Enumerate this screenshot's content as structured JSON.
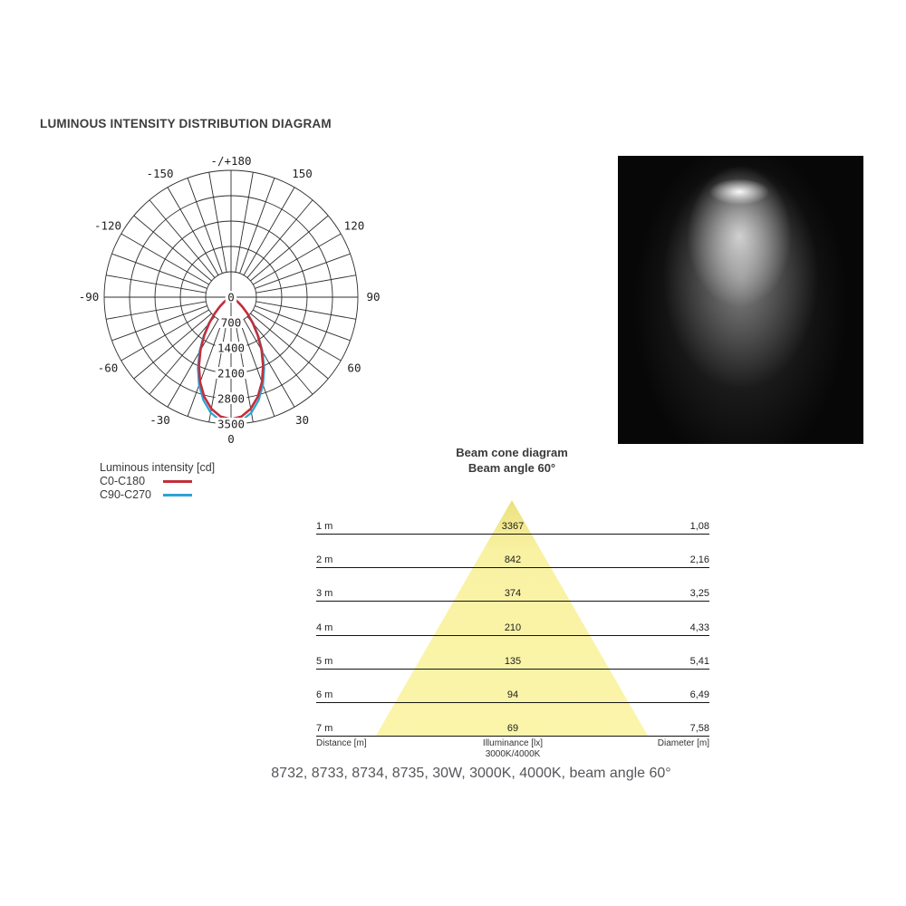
{
  "page": {
    "title": "LUMINOUS INTENSITY DISTRIBUTION DIAGRAM",
    "caption": "8732, 8733, 8734, 8735, 30W, 3000K, 4000K, beam angle 60°"
  },
  "colors": {
    "c0_c180": "#c22f3a",
    "c90_c270": "#2aa5d6",
    "grid": "#2e2e2e",
    "beam_fill": "#fbf5ab",
    "text_dark": "#3a3a3a"
  },
  "legend": {
    "title": "Luminous intensity [cd]",
    "items": [
      {
        "label": "C0-C180",
        "color": "#c22f3a"
      },
      {
        "label": "C90-C270",
        "color": "#2aa5d6"
      }
    ]
  },
  "chart_data": [
    {
      "type": "line",
      "subtype": "polar-luminous-intensity",
      "title": "LUMINOUS INTENSITY DISTRIBUTION DIAGRAM",
      "units": "cd",
      "r_max_cd": 3500,
      "ring_step_cd": 700,
      "ring_values_cd": [
        700,
        1400,
        2100,
        2800,
        3500
      ],
      "ring_labels": [
        {
          "value": 0,
          "label": "0"
        },
        {
          "value": 700,
          "label": "700"
        },
        {
          "value": 1400,
          "label": "1400"
        },
        {
          "value": 2100,
          "label": "2100"
        },
        {
          "value": 2800,
          "label": "2800"
        },
        {
          "value": 3500,
          "label": "3500"
        }
      ],
      "spoke_step_deg": 10,
      "angle_labels": [
        {
          "angle": 180,
          "label": "-/+180"
        },
        {
          "angle": -150,
          "label": "-150"
        },
        {
          "angle": 150,
          "label": "150"
        },
        {
          "angle": -120,
          "label": "-120"
        },
        {
          "angle": 120,
          "label": "120"
        },
        {
          "angle": -90,
          "label": "-90"
        },
        {
          "angle": 90,
          "label": "90"
        },
        {
          "angle": -60,
          "label": "-60"
        },
        {
          "angle": 60,
          "label": "60"
        },
        {
          "angle": -30,
          "label": "-30"
        },
        {
          "angle": 30,
          "label": "30"
        },
        {
          "angle": 0,
          "label": "0"
        }
      ],
      "angles_deg": [
        -90,
        -85,
        -80,
        -75,
        -70,
        -65,
        -60,
        -55,
        -50,
        -45,
        -40,
        -35,
        -30,
        -25,
        -20,
        -15,
        -10,
        -5,
        0,
        5,
        10,
        15,
        20,
        25,
        30,
        35,
        40,
        45,
        50,
        55,
        60,
        65,
        70,
        75,
        80,
        85,
        90
      ],
      "series": [
        {
          "name": "C90-C270",
          "color": "#2aa5d6",
          "values_cd": [
            0,
            0,
            1,
            5,
            20,
            55,
            123,
            239,
            413,
            654,
            963,
            1330,
            1739,
            2166,
            2578,
            2944,
            3233,
            3417,
            3480,
            3417,
            3233,
            2944,
            2578,
            2166,
            1739,
            1330,
            963,
            654,
            413,
            239,
            123,
            55,
            20,
            5,
            1,
            0,
            0
          ]
        },
        {
          "name": "C0-C180",
          "color": "#c22f3a",
          "values_cd": [
            0,
            0,
            1,
            5,
            19,
            53,
            119,
            231,
            400,
            633,
            932,
            1287,
            1683,
            2096,
            2495,
            2849,
            3128,
            3306,
            3367,
            3306,
            3128,
            2849,
            2495,
            2096,
            1683,
            1287,
            932,
            633,
            400,
            231,
            119,
            53,
            19,
            5,
            1,
            0,
            0
          ]
        }
      ]
    },
    {
      "type": "table",
      "title": "Beam cone diagram",
      "subtitle": "Beam angle 60°",
      "beam_angle_deg": 60,
      "columns": [
        "Distance [m]",
        "Illuminance [lx] 3000K/4000K",
        "Diameter [m]"
      ],
      "footer": {
        "left": "Distance [m]",
        "center_line1": "Illuminance [lx]",
        "center_line2": "3000K/4000K",
        "right": "Diameter [m]"
      },
      "rows": [
        {
          "distance": "1 m",
          "illuminance": "3367",
          "diameter": "1,08"
        },
        {
          "distance": "2 m",
          "illuminance": "842",
          "diameter": "2,16"
        },
        {
          "distance": "3 m",
          "illuminance": "374",
          "diameter": "3,25"
        },
        {
          "distance": "4 m",
          "illuminance": "210",
          "diameter": "4,33"
        },
        {
          "distance": "5 m",
          "illuminance": "135",
          "diameter": "5,41"
        },
        {
          "distance": "6 m",
          "illuminance": "94",
          "diameter": "6,49"
        },
        {
          "distance": "7 m",
          "illuminance": "69",
          "diameter": "7,58"
        }
      ]
    }
  ]
}
